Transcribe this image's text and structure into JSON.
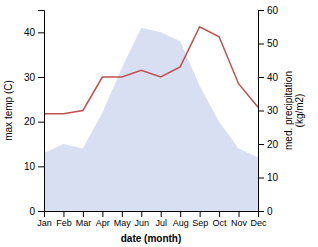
{
  "chart_data": {
    "type": "line",
    "x_label": "date (month)",
    "y_label": "max temp (C)",
    "y2_label": "med. precipitation\n(kg/m2)",
    "categories": [
      "Jan",
      "Feb",
      "Mar",
      "Apr",
      "May",
      "Jun",
      "Jul",
      "Aug",
      "Sep",
      "Oct",
      "Nov",
      "Dec"
    ],
    "series": [
      {
        "type": "area",
        "color": "#b8c4e8",
        "values": [
          13,
          15,
          14,
          22,
          32,
          41,
          40,
          38,
          28,
          20,
          14,
          12
        ]
      },
      {
        "type": "line",
        "color": "#c0504d",
        "axis": "y2",
        "values": [
          29,
          29,
          30,
          40,
          40,
          42,
          40,
          43,
          55,
          52,
          38,
          31
        ]
      }
    ],
    "ylim": [
      0,
      45
    ],
    "yticks": [
      0,
      10,
      20,
      30,
      40
    ],
    "y2lim": [
      0,
      60
    ],
    "y2ticks": [
      0,
      10,
      20,
      30,
      40,
      50,
      60
    ],
    "grid": false
  }
}
